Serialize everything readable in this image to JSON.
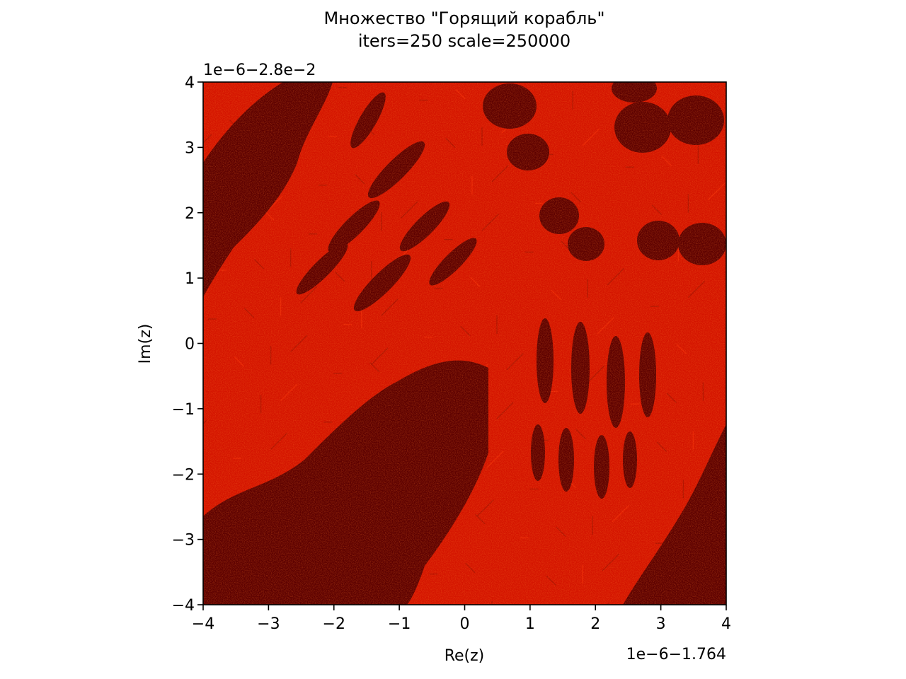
{
  "chart_data": {
    "type": "heatmap",
    "title": "Множество \"Горящий корабль\"",
    "subtitle": "iters=250 scale=250000",
    "xlabel": "Re(z)",
    "ylabel": "Im(z)",
    "x_offset_label": "1e−6−1.764",
    "y_offset_label": "1e−6−2.8e−2",
    "xlim": [
      -4,
      4
    ],
    "ylim": [
      -4,
      4
    ],
    "x_ticks": [
      -4,
      -3,
      -2,
      -1,
      0,
      1,
      2,
      3,
      4
    ],
    "y_ticks": [
      -4,
      -3,
      -2,
      -1,
      0,
      1,
      2,
      3,
      4
    ],
    "x_tick_labels": [
      "−4",
      "−3",
      "−2",
      "−1",
      "0",
      "1",
      "2",
      "3",
      "4"
    ],
    "y_tick_labels": [
      "−4",
      "−3",
      "−2",
      "−1",
      "0",
      "1",
      "2",
      "3",
      "4"
    ],
    "grid": false,
    "colors": {
      "interior": "#5c0000",
      "filament": "#d41400",
      "filament_bright": "#f02a08",
      "background_mid": "#a01000"
    }
  }
}
